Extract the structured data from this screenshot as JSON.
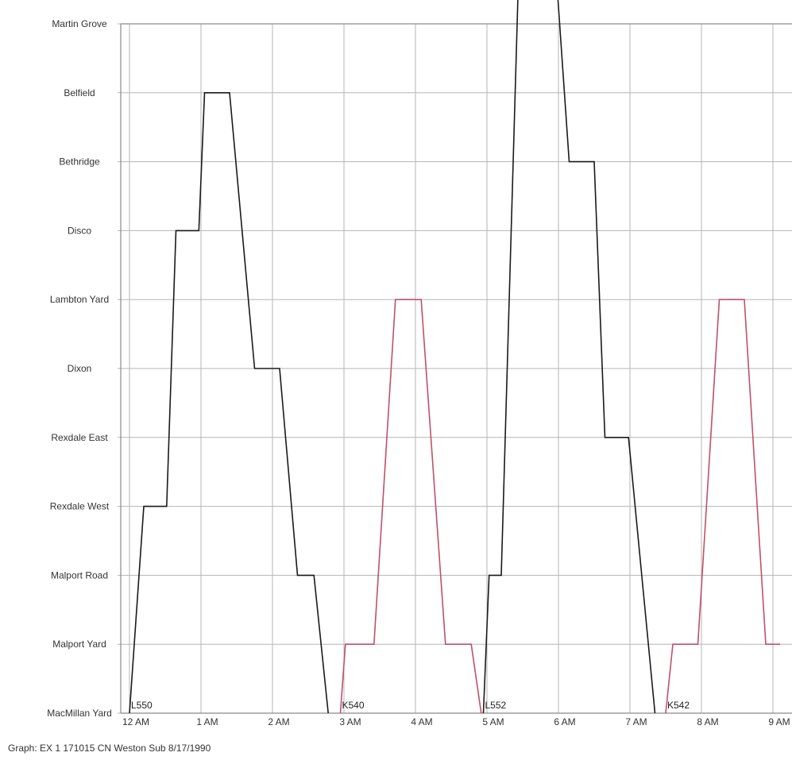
{
  "caption": "Graph: EX 1 171015  CN Weston Sub  8/17/1990",
  "chart_data": {
    "type": "line",
    "title": "",
    "xlabel": "",
    "ylabel": "",
    "x_unit": "hours after midnight",
    "xlim": [
      0,
      9
    ],
    "x_ticks": [
      {
        "value": 0,
        "label": "12 AM"
      },
      {
        "value": 1,
        "label": "1 AM"
      },
      {
        "value": 2,
        "label": "2 AM"
      },
      {
        "value": 3,
        "label": "3 AM"
      },
      {
        "value": 4,
        "label": "4 AM"
      },
      {
        "value": 5,
        "label": "5 AM"
      },
      {
        "value": 6,
        "label": "6 AM"
      },
      {
        "value": 7,
        "label": "7 AM"
      },
      {
        "value": 8,
        "label": "8 AM"
      },
      {
        "value": 9,
        "label": "9 AM"
      }
    ],
    "stations": [
      "MacMillan Yard",
      "Malport Yard",
      "Malport Road",
      "Rexdale West",
      "Rexdale East",
      "Dixon",
      "Lambton Yard",
      "Disco",
      "Bethridge",
      "Belfield",
      "Martin Grove"
    ],
    "grid": true,
    "colors": {
      "black_trains": "#1a1a1a",
      "red_trains": "#c0506a"
    },
    "series": [
      {
        "name": "L550",
        "color": "#1a1a1a",
        "points": [
          [
            0.0,
            0
          ],
          [
            0.2,
            3
          ],
          [
            0.52,
            3
          ],
          [
            0.65,
            7
          ],
          [
            0.97,
            7
          ],
          [
            1.05,
            9
          ],
          [
            1.4,
            9
          ],
          [
            1.75,
            5
          ],
          [
            2.1,
            5
          ],
          [
            2.35,
            2
          ],
          [
            2.58,
            2
          ],
          [
            2.78,
            0
          ]
        ]
      },
      {
        "name": "K540",
        "color": "#c0506a",
        "points": [
          [
            2.95,
            0
          ],
          [
            3.02,
            1
          ],
          [
            3.42,
            1
          ],
          [
            3.72,
            6
          ],
          [
            4.08,
            6
          ],
          [
            4.42,
            1
          ],
          [
            4.78,
            1
          ],
          [
            4.92,
            0
          ]
        ]
      },
      {
        "name": "L552",
        "color": "#1a1a1a",
        "points": [
          [
            4.95,
            0
          ],
          [
            5.03,
            2
          ],
          [
            5.2,
            2
          ],
          [
            5.45,
            11
          ],
          [
            5.95,
            11
          ],
          [
            6.15,
            8
          ],
          [
            6.5,
            8
          ],
          [
            6.65,
            4
          ],
          [
            6.98,
            4
          ],
          [
            7.35,
            0
          ]
        ]
      },
      {
        "name": "K542",
        "color": "#c0506a",
        "points": [
          [
            7.5,
            0
          ],
          [
            7.6,
            1
          ],
          [
            7.95,
            1
          ],
          [
            8.25,
            6
          ],
          [
            8.6,
            6
          ],
          [
            8.9,
            1
          ],
          [
            9.1,
            1
          ]
        ]
      }
    ]
  }
}
